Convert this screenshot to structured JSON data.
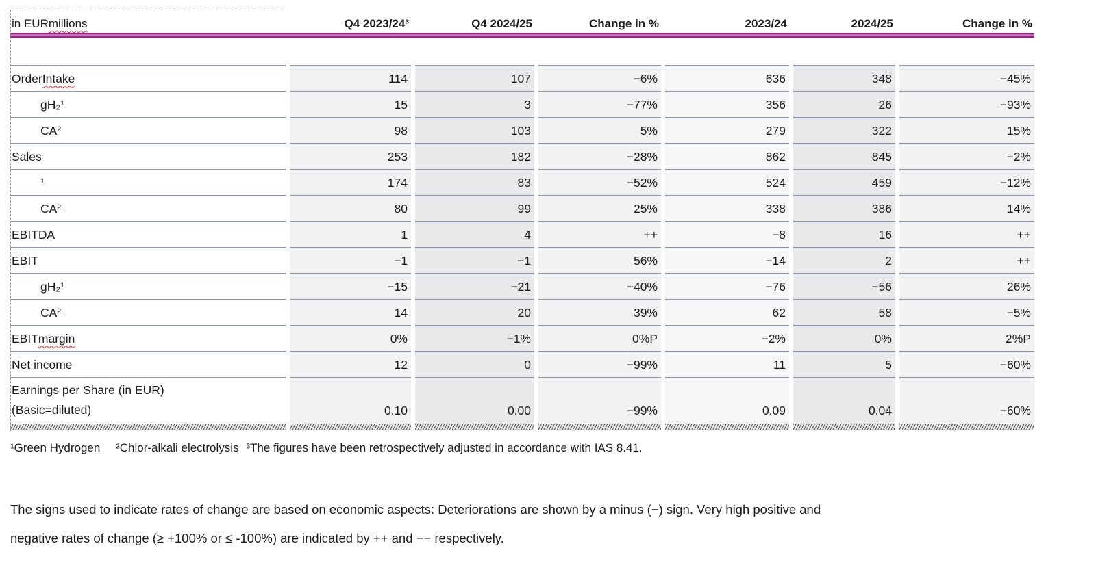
{
  "table": {
    "unit_label": {
      "plain": "in EUR ",
      "wavy": "millions"
    },
    "columns": [
      "Q4 2023/24³",
      "Q4 2024/25",
      "Change in %",
      "2023/24",
      "2024/25",
      "Change in %"
    ],
    "rows": [
      {
        "label": "Order Intake",
        "wavy": "Intake",
        "indent": false,
        "values": [
          "114",
          "107",
          "−6%",
          "636",
          "348",
          "−45%"
        ]
      },
      {
        "label": "gH₂¹",
        "indent": true,
        "values": [
          "15",
          "3",
          "−77%",
          "356",
          "26",
          "−93%"
        ]
      },
      {
        "label": "CA²",
        "indent": true,
        "values": [
          "98",
          "103",
          "5%",
          "279",
          "322",
          "15%"
        ]
      },
      {
        "label": "Sales",
        "indent": false,
        "values": [
          "253",
          "182",
          "−28%",
          "862",
          "845",
          "−2%"
        ]
      },
      {
        "label": "¹",
        "indent": true,
        "values": [
          "174",
          "83",
          "−52%",
          "524",
          "459",
          "−12%"
        ]
      },
      {
        "label": "CA²",
        "indent": true,
        "values": [
          "80",
          "99",
          "25%",
          "338",
          "386",
          "14%"
        ]
      },
      {
        "label": "EBITDA",
        "indent": false,
        "values": [
          "1",
          "4",
          "++",
          "−8",
          "16",
          "++"
        ]
      },
      {
        "label": "EBIT",
        "indent": false,
        "values": [
          "−1",
          "−1",
          "56%",
          "−14",
          "2",
          "++"
        ]
      },
      {
        "label": "gH₂¹",
        "indent": true,
        "values": [
          "−15",
          "−21",
          "−40%",
          "−76",
          "−56",
          "26%"
        ]
      },
      {
        "label": "CA²",
        "indent": true,
        "values": [
          "14",
          "20",
          "39%",
          "62",
          "58",
          "−5%"
        ]
      },
      {
        "label": "EBIT margin",
        "wavy": "margin",
        "indent": false,
        "values": [
          "0%",
          "−1%",
          "0%P",
          "−2%",
          "0%",
          "2%P"
        ]
      },
      {
        "label": "Net income",
        "indent": false,
        "values": [
          "12",
          "0",
          "−99%",
          "11",
          "5",
          "−60%"
        ]
      },
      {
        "label_lines": [
          "Earnings per Share (in EUR)",
          "(Basic=diluted)"
        ],
        "indent": false,
        "tall": true,
        "values": [
          "0.10",
          "0.00",
          "−99%",
          "0.09",
          "0.04",
          "−60%"
        ]
      }
    ]
  },
  "footnotes": [
    "¹Green Hydrogen",
    "²Chlor-alkali electrolysis",
    "³The figures have been retrospectively adjusted in accordance with IAS 8.41."
  ],
  "note": {
    "lines": [
      "The signs used to indicate rates of change are based on economic aspects: Deteriorations are shown by a minus (−) sign. Very high positive and",
      "negative rates of change (≥ +100% or ≤ -100%) are indicated by ++ and −− respectively."
    ]
  },
  "colors": {
    "accent_rule_outer": "#a01b90",
    "accent_rule_inner": "#c56cb9",
    "row_separator": "#8b97a6",
    "shade_light": "#f2f2f3",
    "shade_lighter": "#f6f6f7",
    "shade_dark": "#e9e9eb",
    "spellcheck_red": "#e2241e",
    "text": "#1d1d1b"
  }
}
